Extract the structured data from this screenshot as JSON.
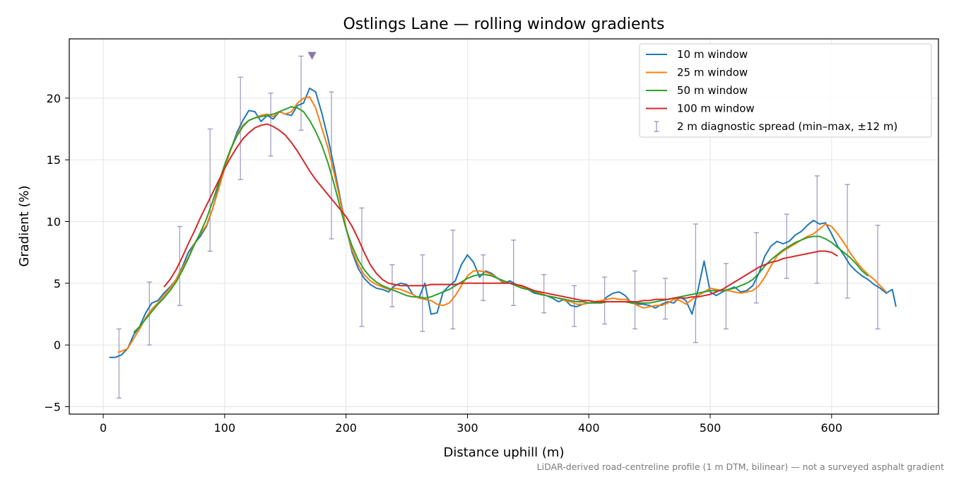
{
  "chart_data": {
    "type": "line",
    "title": "Ostlings Lane — rolling window gradients",
    "xlabel": "Distance uphill (m)",
    "ylabel": "Gradient (%)",
    "xlim": [
      -28,
      688
    ],
    "ylim": [
      -5.6,
      24.8
    ],
    "xticks": [
      0,
      100,
      200,
      300,
      400,
      500,
      600
    ],
    "yticks": [
      -5,
      0,
      5,
      10,
      15,
      20
    ],
    "grid": true,
    "legend_position": "top-right",
    "footnote": "LiDAR-derived road-centreline profile (1 m DTM, bilinear) — not a surveyed asphalt gradient",
    "peak_marker": {
      "x": 172,
      "y": 23.4,
      "color": "#8878a8"
    },
    "series": [
      {
        "name": "10 m window",
        "color": "#1f77b4",
        "x": [
          5,
          10,
          15,
          20,
          25,
          30,
          35,
          40,
          45,
          50,
          55,
          60,
          65,
          70,
          75,
          80,
          85,
          90,
          95,
          100,
          105,
          110,
          115,
          120,
          125,
          130,
          135,
          140,
          145,
          150,
          155,
          160,
          165,
          170,
          175,
          180,
          185,
          190,
          195,
          200,
          205,
          210,
          215,
          220,
          225,
          230,
          235,
          240,
          245,
          250,
          255,
          260,
          265,
          270,
          275,
          280,
          285,
          290,
          295,
          300,
          305,
          310,
          315,
          320,
          325,
          330,
          335,
          340,
          345,
          350,
          355,
          360,
          365,
          370,
          375,
          380,
          385,
          390,
          395,
          400,
          405,
          410,
          415,
          420,
          425,
          430,
          435,
          440,
          445,
          450,
          455,
          460,
          465,
          470,
          475,
          480,
          485,
          490,
          495,
          500,
          505,
          510,
          515,
          520,
          525,
          530,
          535,
          540,
          545,
          550,
          555,
          560,
          565,
          570,
          575,
          580,
          585,
          590,
          595,
          600,
          605,
          610,
          615,
          620,
          625,
          630,
          635,
          640,
          645,
          650,
          653
        ],
        "y": [
          -1.0,
          -1.0,
          -0.8,
          -0.3,
          0.8,
          1.5,
          2.6,
          3.4,
          3.6,
          4.2,
          4.7,
          5.3,
          6.3,
          7.5,
          8.2,
          8.8,
          9.6,
          11.0,
          12.8,
          14.6,
          15.8,
          17.2,
          18.2,
          19.0,
          18.9,
          18.1,
          18.6,
          18.3,
          18.9,
          18.7,
          18.6,
          19.4,
          19.6,
          20.8,
          20.5,
          18.8,
          16.8,
          14.5,
          12.0,
          9.5,
          7.5,
          6.2,
          5.4,
          4.9,
          4.6,
          4.5,
          4.3,
          4.8,
          5.0,
          4.9,
          4.1,
          3.8,
          5.0,
          2.5,
          2.6,
          4.3,
          4.8,
          5.2,
          6.5,
          7.3,
          6.7,
          5.5,
          6.0,
          5.8,
          5.4,
          5.0,
          5.2,
          4.9,
          4.6,
          4.5,
          4.2,
          4.1,
          4.0,
          3.8,
          3.5,
          3.7,
          3.2,
          3.1,
          3.3,
          3.4,
          3.5,
          3.4,
          3.9,
          4.2,
          4.3,
          4.0,
          3.4,
          3.3,
          3.3,
          3.2,
          3.0,
          3.3,
          3.5,
          3.4,
          3.9,
          3.6,
          2.5,
          4.5,
          6.8,
          4.3,
          4.0,
          4.3,
          4.5,
          4.7,
          4.3,
          4.4,
          4.8,
          5.8,
          7.2,
          8.0,
          8.4,
          8.2,
          8.4,
          8.9,
          9.2,
          9.7,
          10.1,
          9.8,
          9.9,
          9.0,
          8.0,
          7.3,
          6.5,
          6.0,
          5.6,
          5.3,
          4.9,
          4.6,
          4.2,
          4.5,
          3.1
        ]
      },
      {
        "name": "25 m window",
        "color": "#ff7f0e",
        "x": [
          12,
          15,
          20,
          25,
          30,
          35,
          40,
          45,
          50,
          55,
          60,
          65,
          70,
          75,
          80,
          85,
          90,
          95,
          100,
          105,
          110,
          115,
          120,
          125,
          130,
          135,
          140,
          145,
          150,
          155,
          160,
          165,
          170,
          175,
          180,
          185,
          190,
          195,
          200,
          205,
          210,
          215,
          220,
          225,
          230,
          235,
          240,
          245,
          250,
          255,
          260,
          265,
          270,
          275,
          280,
          285,
          290,
          295,
          300,
          305,
          310,
          315,
          320,
          325,
          330,
          335,
          340,
          345,
          350,
          355,
          360,
          365,
          370,
          375,
          380,
          385,
          390,
          395,
          400,
          405,
          410,
          415,
          420,
          425,
          430,
          435,
          440,
          445,
          450,
          455,
          460,
          465,
          470,
          475,
          480,
          485,
          490,
          495,
          500,
          505,
          510,
          515,
          520,
          525,
          530,
          535,
          540,
          545,
          550,
          555,
          560,
          565,
          570,
          575,
          580,
          585,
          590,
          595,
          600,
          605,
          610,
          615,
          620,
          625,
          630,
          635,
          640,
          645
        ],
        "y": [
          -0.6,
          -0.5,
          -0.3,
          0.5,
          1.3,
          2.2,
          2.9,
          3.4,
          4.0,
          4.6,
          5.3,
          6.2,
          7.1,
          8.2,
          9.0,
          9.7,
          11.0,
          12.6,
          14.3,
          15.8,
          17.0,
          17.8,
          18.2,
          18.4,
          18.6,
          18.7,
          18.5,
          18.9,
          18.7,
          18.9,
          19.6,
          20.0,
          20.1,
          19.2,
          17.6,
          16.0,
          14.0,
          11.8,
          9.5,
          7.7,
          6.5,
          5.7,
          5.2,
          4.9,
          4.7,
          4.5,
          4.6,
          4.5,
          4.3,
          4.1,
          3.8,
          3.7,
          3.6,
          3.3,
          3.2,
          3.4,
          4.0,
          4.8,
          5.6,
          6.0,
          6.0,
          5.9,
          5.7,
          5.4,
          5.1,
          5.0,
          4.9,
          4.7,
          4.5,
          4.4,
          4.2,
          4.0,
          3.9,
          3.8,
          3.6,
          3.5,
          3.3,
          3.3,
          3.4,
          3.5,
          3.6,
          3.7,
          3.8,
          3.7,
          3.7,
          3.5,
          3.2,
          3.0,
          3.1,
          3.2,
          3.2,
          3.4,
          3.7,
          3.6,
          3.3,
          3.7,
          4.0,
          4.3,
          4.6,
          4.5,
          4.4,
          4.4,
          4.3,
          4.2,
          4.3,
          4.4,
          4.8,
          5.5,
          6.4,
          7.2,
          7.6,
          7.9,
          8.2,
          8.5,
          8.8,
          9.0,
          9.4,
          9.8,
          9.6,
          9.0,
          8.3,
          7.5,
          6.8,
          6.2,
          5.7,
          5.3,
          4.8,
          4.3
        ]
      },
      {
        "name": "50 m window",
        "color": "#2ca02c",
        "x": [
          25,
          30,
          35,
          40,
          45,
          50,
          55,
          60,
          65,
          70,
          75,
          80,
          85,
          90,
          95,
          100,
          105,
          110,
          115,
          120,
          125,
          130,
          135,
          140,
          145,
          150,
          155,
          160,
          165,
          170,
          175,
          180,
          185,
          190,
          195,
          200,
          205,
          210,
          215,
          220,
          225,
          230,
          235,
          240,
          245,
          250,
          255,
          260,
          265,
          270,
          275,
          280,
          285,
          290,
          295,
          300,
          305,
          310,
          315,
          320,
          325,
          330,
          335,
          340,
          345,
          350,
          355,
          360,
          365,
          370,
          375,
          380,
          385,
          390,
          395,
          400,
          405,
          410,
          415,
          420,
          425,
          430,
          435,
          440,
          445,
          450,
          455,
          460,
          465,
          470,
          475,
          480,
          485,
          490,
          495,
          500,
          505,
          510,
          515,
          520,
          525,
          530,
          535,
          540,
          545,
          550,
          555,
          560,
          565,
          570,
          575,
          580,
          585,
          590,
          595,
          600,
          605,
          610,
          615,
          620,
          625,
          630
        ],
        "y": [
          1.0,
          1.5,
          2.1,
          2.7,
          3.3,
          3.8,
          4.4,
          5.1,
          6.0,
          7.0,
          8.1,
          9.1,
          10.2,
          11.6,
          13.1,
          14.6,
          15.9,
          16.9,
          17.7,
          18.2,
          18.4,
          18.5,
          18.6,
          18.7,
          18.9,
          19.1,
          19.3,
          19.2,
          18.9,
          18.2,
          17.3,
          16.2,
          14.8,
          13.1,
          11.2,
          9.4,
          8.0,
          6.9,
          6.1,
          5.5,
          5.1,
          4.8,
          4.6,
          4.4,
          4.2,
          4.0,
          3.9,
          3.9,
          3.8,
          3.9,
          4.1,
          4.3,
          4.5,
          4.8,
          5.1,
          5.4,
          5.6,
          5.7,
          5.7,
          5.6,
          5.4,
          5.2,
          5.0,
          4.8,
          4.6,
          4.5,
          4.3,
          4.1,
          4.0,
          3.9,
          3.8,
          3.7,
          3.6,
          3.5,
          3.5,
          3.4,
          3.4,
          3.4,
          3.5,
          3.5,
          3.5,
          3.5,
          3.4,
          3.4,
          3.4,
          3.4,
          3.5,
          3.6,
          3.7,
          3.8,
          3.9,
          4.0,
          4.1,
          4.2,
          4.3,
          4.4,
          4.4,
          4.4,
          4.5,
          4.6,
          4.8,
          5.0,
          5.3,
          5.8,
          6.4,
          6.9,
          7.3,
          7.7,
          8.0,
          8.3,
          8.5,
          8.7,
          8.8,
          8.8,
          8.6,
          8.3,
          7.9,
          7.5,
          7.1,
          6.6,
          6.0,
          5.6
        ]
      },
      {
        "name": "100 m window",
        "color": "#d62728",
        "x": [
          50,
          55,
          60,
          65,
          70,
          75,
          80,
          85,
          90,
          95,
          100,
          105,
          110,
          115,
          120,
          125,
          130,
          135,
          140,
          145,
          150,
          155,
          160,
          165,
          170,
          175,
          180,
          185,
          190,
          195,
          200,
          205,
          210,
          215,
          220,
          225,
          230,
          235,
          240,
          245,
          250,
          255,
          260,
          265,
          270,
          275,
          280,
          285,
          290,
          295,
          300,
          305,
          310,
          315,
          320,
          325,
          330,
          335,
          340,
          345,
          350,
          355,
          360,
          365,
          370,
          375,
          380,
          385,
          390,
          395,
          400,
          405,
          410,
          415,
          420,
          425,
          430,
          435,
          440,
          445,
          450,
          455,
          460,
          465,
          470,
          475,
          480,
          485,
          490,
          495,
          500,
          505,
          510,
          515,
          520,
          525,
          530,
          535,
          540,
          545,
          550,
          555,
          560,
          565,
          570,
          575,
          580,
          585,
          590,
          595,
          600,
          605
        ],
        "y": [
          4.7,
          5.3,
          6.1,
          7.1,
          8.2,
          9.2,
          10.3,
          11.3,
          12.3,
          13.3,
          14.3,
          15.2,
          16.0,
          16.7,
          17.2,
          17.6,
          17.8,
          17.9,
          17.7,
          17.4,
          17.0,
          16.4,
          15.7,
          14.9,
          14.1,
          13.4,
          12.8,
          12.2,
          11.6,
          11.0,
          10.4,
          9.6,
          8.6,
          7.5,
          6.5,
          5.8,
          5.3,
          5.0,
          4.9,
          4.8,
          4.8,
          4.8,
          4.8,
          4.8,
          4.9,
          4.9,
          4.9,
          4.9,
          4.9,
          5.0,
          5.0,
          5.0,
          5.0,
          5.0,
          5.0,
          5.0,
          5.0,
          5.0,
          4.9,
          4.8,
          4.6,
          4.4,
          4.3,
          4.2,
          4.1,
          4.0,
          3.9,
          3.8,
          3.7,
          3.6,
          3.6,
          3.5,
          3.5,
          3.5,
          3.5,
          3.5,
          3.5,
          3.5,
          3.5,
          3.6,
          3.6,
          3.7,
          3.7,
          3.7,
          3.8,
          3.8,
          3.8,
          3.9,
          3.9,
          4.0,
          4.1,
          4.3,
          4.5,
          4.8,
          5.1,
          5.4,
          5.7,
          6.0,
          6.3,
          6.5,
          6.7,
          6.8,
          7.0,
          7.1,
          7.2,
          7.3,
          7.4,
          7.5,
          7.6,
          7.6,
          7.5,
          7.2
        ]
      }
    ],
    "errorbars": {
      "name": "2 m diagnostic spread (min–max, ±12 m)",
      "color": "#9b94c0",
      "points": [
        {
          "x": 13,
          "low": -4.3,
          "high": 1.3
        },
        {
          "x": 38,
          "low": 0.0,
          "high": 5.1
        },
        {
          "x": 63,
          "low": 3.2,
          "high": 9.6
        },
        {
          "x": 88,
          "low": 7.6,
          "high": 17.5
        },
        {
          "x": 113,
          "low": 13.4,
          "high": 21.7
        },
        {
          "x": 138,
          "low": 15.3,
          "high": 20.4
        },
        {
          "x": 163,
          "low": 17.4,
          "high": 23.4
        },
        {
          "x": 188,
          "low": 8.6,
          "high": 20.5
        },
        {
          "x": 213,
          "low": 1.5,
          "high": 11.1
        },
        {
          "x": 238,
          "low": 3.1,
          "high": 6.5
        },
        {
          "x": 263,
          "low": 1.1,
          "high": 7.3
        },
        {
          "x": 288,
          "low": 1.3,
          "high": 9.3
        },
        {
          "x": 313,
          "low": 3.6,
          "high": 7.3
        },
        {
          "x": 338,
          "low": 3.2,
          "high": 8.5
        },
        {
          "x": 363,
          "low": 2.6,
          "high": 5.7
        },
        {
          "x": 388,
          "low": 1.5,
          "high": 4.8
        },
        {
          "x": 413,
          "low": 1.7,
          "high": 5.5
        },
        {
          "x": 438,
          "low": 1.3,
          "high": 6.0
        },
        {
          "x": 463,
          "low": 2.1,
          "high": 5.4
        },
        {
          "x": 488,
          "low": 0.2,
          "high": 9.8
        },
        {
          "x": 513,
          "low": 1.3,
          "high": 6.6
        },
        {
          "x": 538,
          "low": 3.4,
          "high": 9.1
        },
        {
          "x": 563,
          "low": 5.4,
          "high": 10.6
        },
        {
          "x": 588,
          "low": 5.0,
          "high": 13.7
        },
        {
          "x": 613,
          "low": 3.8,
          "high": 13.0
        },
        {
          "x": 638,
          "low": 1.3,
          "high": 9.7
        }
      ]
    }
  }
}
